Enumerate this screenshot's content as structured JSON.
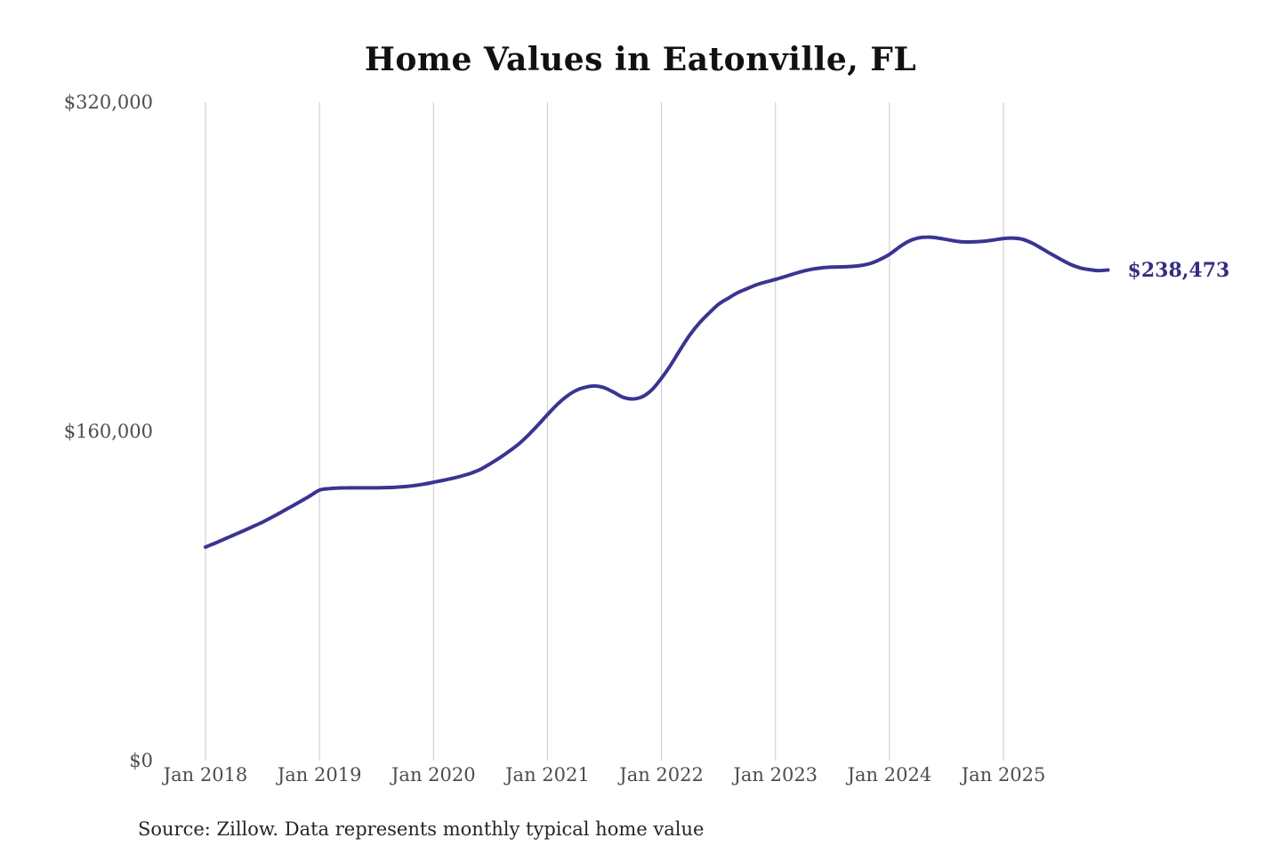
{
  "title": "Home Values in Eatonville, FL",
  "source_note": "Source: Zillow. Data represents monthly typical home value",
  "final_value_label": "$238,473",
  "colors": {
    "background": "#ffffff",
    "line": "#3a3491",
    "end_label": "#332e80",
    "grid": "#c9c9c9",
    "axis_text": "#4d4d4d",
    "title_text": "#111111",
    "source_text": "#262626"
  },
  "y_axis": {
    "ticks": [
      {
        "label": "$0",
        "value": 0
      },
      {
        "label": "$160,000",
        "value": 160000
      },
      {
        "label": "$320,000",
        "value": 320000
      }
    ]
  },
  "x_axis": {
    "ticks": [
      "Jan 2018",
      "Jan 2019",
      "Jan 2020",
      "Jan 2021",
      "Jan 2022",
      "Jan 2023",
      "Jan 2024",
      "Jan 2025"
    ]
  },
  "chart_data": {
    "type": "line",
    "title": "Home Values in Eatonville, FL",
    "xlabel": "",
    "ylabel": "",
    "ylim": [
      0,
      320000
    ],
    "grid": "vertical-only",
    "legend": "none",
    "x_start_month": "2018-01",
    "x_end_month": "2025-12",
    "frequency": "monthly",
    "series_name": "Typical home value ($)",
    "values": [
      103800,
      105700,
      107700,
      109700,
      111700,
      113800,
      115900,
      118300,
      120800,
      123400,
      126000,
      128700,
      131450,
      132200,
      132500,
      132600,
      132600,
      132600,
      132600,
      132700,
      132900,
      133200,
      133700,
      134400,
      135300,
      136200,
      137200,
      138400,
      139800,
      141700,
      144400,
      147300,
      150500,
      154000,
      158300,
      163100,
      168200,
      173000,
      177000,
      179900,
      181500,
      182100,
      181200,
      179000,
      176500,
      175800,
      176900,
      180300,
      185900,
      192500,
      200000,
      207000,
      212800,
      217500,
      221800,
      224700,
      227400,
      229400,
      231300,
      232700,
      233900,
      235300,
      236700,
      238000,
      239000,
      239600,
      239900,
      240000,
      240200,
      240700,
      241700,
      243600,
      246100,
      249500,
      252400,
      254000,
      254500,
      254100,
      253300,
      252500,
      252100,
      252200,
      252500,
      253100,
      253800,
      254000,
      253400,
      251600,
      249000,
      246300,
      243700,
      241300,
      239600,
      238700,
      238200,
      238473
    ],
    "final_value": 238473
  }
}
